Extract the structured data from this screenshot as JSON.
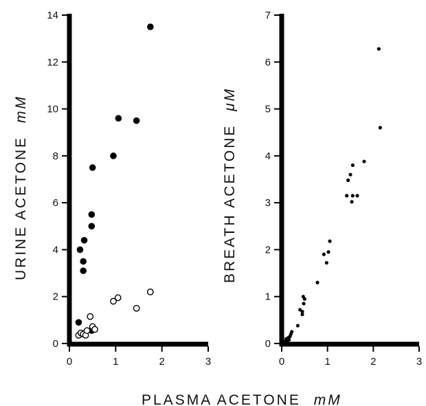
{
  "chart_data": [
    {
      "type": "scatter",
      "xlabel": "PLASMA ACETONE",
      "xunit": "mM",
      "ylabel": "URINE ACETONE",
      "yunit": "mM",
      "xlim": [
        0,
        3
      ],
      "ylim": [
        0,
        14
      ],
      "xticks": [
        "0",
        "1",
        "2",
        "3"
      ],
      "yticks": [
        "0",
        "2",
        "4",
        "6",
        "8",
        "10",
        "12",
        "14"
      ],
      "series": [
        {
          "marker": "filled-circle",
          "color": "#000000",
          "points": [
            [
              0.2,
              0.9
            ],
            [
              0.23,
              4.0
            ],
            [
              0.3,
              3.1
            ],
            [
              0.3,
              3.5
            ],
            [
              0.32,
              4.4
            ],
            [
              0.48,
              5.0
            ],
            [
              0.48,
              5.5
            ],
            [
              0.5,
              7.5
            ],
            [
              0.95,
              8.0
            ],
            [
              1.06,
              9.6
            ],
            [
              1.45,
              9.5
            ],
            [
              1.75,
              13.5
            ],
            [
              0.48,
              0.55
            ],
            [
              0.52,
              0.6
            ]
          ]
        },
        {
          "marker": "open-circle",
          "color": "#000000",
          "points": [
            [
              0.2,
              0.35
            ],
            [
              0.25,
              0.45
            ],
            [
              0.3,
              0.4
            ],
            [
              0.35,
              0.35
            ],
            [
              0.38,
              0.55
            ],
            [
              0.45,
              1.15
            ],
            [
              0.5,
              0.72
            ],
            [
              0.55,
              0.6
            ],
            [
              0.95,
              1.8
            ],
            [
              1.05,
              1.95
            ],
            [
              1.45,
              1.5
            ],
            [
              1.75,
              2.2
            ]
          ]
        }
      ]
    },
    {
      "type": "scatter",
      "xlabel": "PLASMA ACETONE",
      "xunit": "mM",
      "ylabel": "BREATH ACETONE",
      "yunit": "μM",
      "xlim": [
        0,
        3
      ],
      "ylim": [
        0,
        7
      ],
      "xticks": [
        "0",
        "1",
        "2",
        "3"
      ],
      "yticks": [
        "0",
        "1",
        "2",
        "3",
        "4",
        "5",
        "6",
        "7"
      ],
      "series": [
        {
          "marker": "small-dot",
          "color": "#000000",
          "points": [
            [
              0.08,
              0.05
            ],
            [
              0.1,
              0.1
            ],
            [
              0.12,
              0.05
            ],
            [
              0.14,
              0.12
            ],
            [
              0.16,
              0.08
            ],
            [
              0.18,
              0.15
            ],
            [
              0.2,
              0.2
            ],
            [
              0.22,
              0.25
            ],
            [
              0.35,
              0.38
            ],
            [
              0.4,
              0.72
            ],
            [
              0.45,
              0.68
            ],
            [
              0.45,
              0.62
            ],
            [
              0.47,
              1.0
            ],
            [
              0.48,
              0.85
            ],
            [
              0.5,
              0.95
            ],
            [
              0.78,
              1.3
            ],
            [
              0.92,
              1.9
            ],
            [
              0.98,
              1.72
            ],
            [
              1.02,
              1.95
            ],
            [
              1.05,
              2.18
            ],
            [
              1.42,
              3.15
            ],
            [
              1.45,
              3.48
            ],
            [
              1.5,
              3.6
            ],
            [
              1.53,
              3.02
            ],
            [
              1.55,
              3.8
            ],
            [
              1.55,
              3.15
            ],
            [
              1.65,
              3.15
            ],
            [
              1.8,
              3.88
            ],
            [
              2.12,
              6.28
            ],
            [
              2.15,
              4.6
            ]
          ]
        }
      ]
    }
  ]
}
